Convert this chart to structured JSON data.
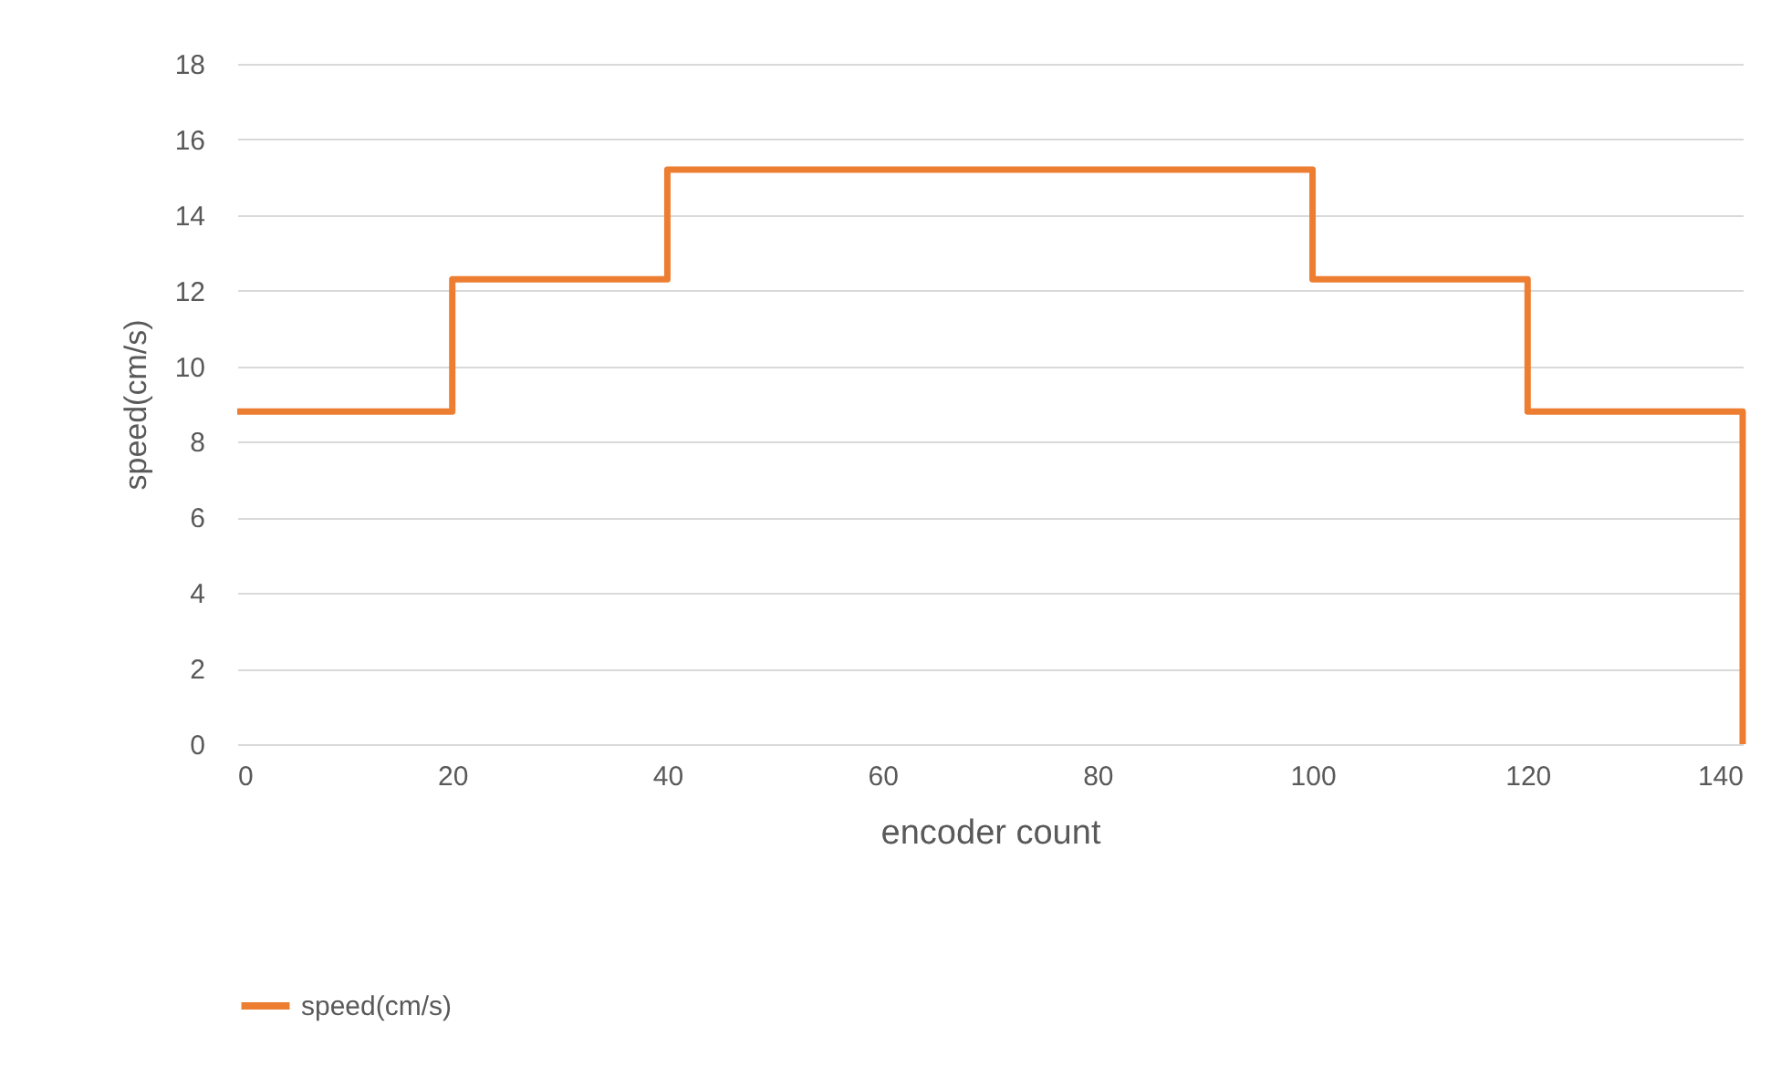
{
  "chart_data": {
    "type": "step",
    "xlabel": "encoder count",
    "ylabel": "speed(cm/s)",
    "x": [
      0,
      20,
      40,
      100,
      120,
      140
    ],
    "series": [
      {
        "name": "speed(cm/s)",
        "color": "#ed7d31",
        "values": [
          8.8,
          12.3,
          15.2,
          12.3,
          8.8,
          0
        ]
      }
    ],
    "xlim": [
      0,
      140
    ],
    "xticks": [
      0,
      20,
      40,
      60,
      80,
      100,
      120,
      140
    ],
    "ylim": [
      0,
      18
    ],
    "yticks": [
      0,
      2,
      4,
      6,
      8,
      10,
      12,
      14,
      16,
      18
    ],
    "grid": "y",
    "legend": "bottom",
    "marker": "none",
    "line_style": "solid"
  }
}
